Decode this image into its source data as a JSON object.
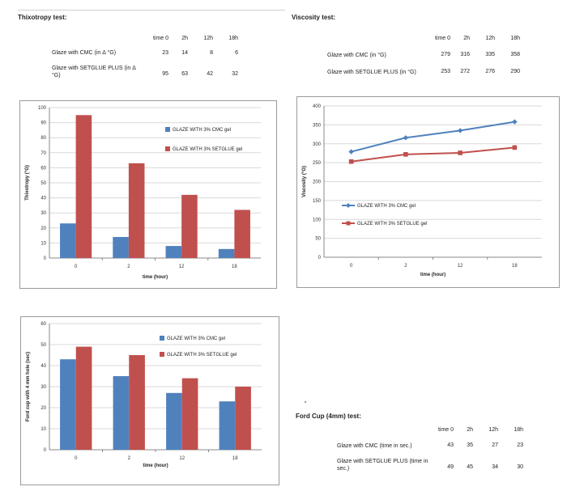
{
  "thixotropy": {
    "title": "Thixotropy test:",
    "headers": [
      "time 0",
      "2h",
      "12h",
      "18h"
    ],
    "rows": [
      {
        "label": "Glaze with CMC (in Δ °G)",
        "values": [
          "23",
          "14",
          "8",
          "6"
        ]
      },
      {
        "label": "Glaze with SETGLUE PLUS (in Δ °G)",
        "values": [
          "95",
          "63",
          "42",
          "32"
        ]
      }
    ]
  },
  "viscosity": {
    "title": "Viscosity test:",
    "headers": [
      "time 0",
      "2h",
      "12h",
      "18h"
    ],
    "rows": [
      {
        "label": "Glaze with CMC (in °G)",
        "values": [
          "279",
          "316",
          "335",
          "358"
        ]
      },
      {
        "label": "Glaze with SETGLUE PLUS (in °G)",
        "values": [
          "253",
          "272",
          "276",
          "290"
        ]
      }
    ]
  },
  "fordcup": {
    "title": "Ford Cup (4mm) test:",
    "headers": [
      "time 0",
      "2h",
      "12h",
      "18h"
    ],
    "rows": [
      {
        "label": "Glaze with CMC (time in sec.)",
        "values": [
          "43",
          "35",
          "27",
          "23"
        ]
      },
      {
        "label": "Glaze with SETGLUE PLUS (time in sec.)",
        "values": [
          "49",
          "45",
          "34",
          "30"
        ]
      }
    ]
  },
  "colors": {
    "blue": "#4f81bd",
    "red": "#c0504d",
    "grid": "#d9d9d9"
  },
  "chart_data": [
    {
      "type": "bar",
      "categories": [
        "0",
        "2",
        "12",
        "18"
      ],
      "series": [
        {
          "name": "GLAZE WITH 3% CMC gel",
          "values": [
            23,
            14,
            8,
            6
          ]
        },
        {
          "name": "GLAZE WITH 3% SETGLUE gel",
          "values": [
            95,
            63,
            42,
            32
          ]
        }
      ],
      "xlabel": "time (hour)",
      "ylabel": "Thixotropy (°G)",
      "ylim": [
        0,
        100
      ],
      "yticks": [
        0,
        10,
        20,
        30,
        40,
        50,
        60,
        70,
        80,
        90,
        100
      ],
      "legend": "right"
    },
    {
      "type": "line",
      "categories": [
        "0",
        "2",
        "12",
        "18"
      ],
      "series": [
        {
          "name": "GLAZE WITH 3% CMC gel",
          "values": [
            279,
            316,
            335,
            358
          ]
        },
        {
          "name": "GLAZE WITH 3% SETGLUE gel",
          "values": [
            253,
            272,
            276,
            290
          ]
        }
      ],
      "xlabel": "time (hour)",
      "ylabel": "Viscosity (°G)",
      "ylim": [
        0,
        400
      ],
      "yticks": [
        0,
        50,
        100,
        150,
        200,
        250,
        300,
        350,
        400
      ],
      "legend": "left"
    },
    {
      "type": "bar",
      "categories": [
        "0",
        "2",
        "12",
        "18"
      ],
      "series": [
        {
          "name": "GLAZE WITH 3% CMC gel",
          "values": [
            43,
            35,
            27,
            23
          ]
        },
        {
          "name": "GLAZE WITH 3% SETGLUE gel",
          "values": [
            49,
            45,
            34,
            30
          ]
        }
      ],
      "xlabel": "time (hour)",
      "ylabel": "Ford cup with 4 mm hole (sec)",
      "ylim": [
        0,
        60
      ],
      "yticks": [
        0,
        10,
        20,
        30,
        40,
        50,
        60
      ],
      "legend": "right"
    }
  ]
}
